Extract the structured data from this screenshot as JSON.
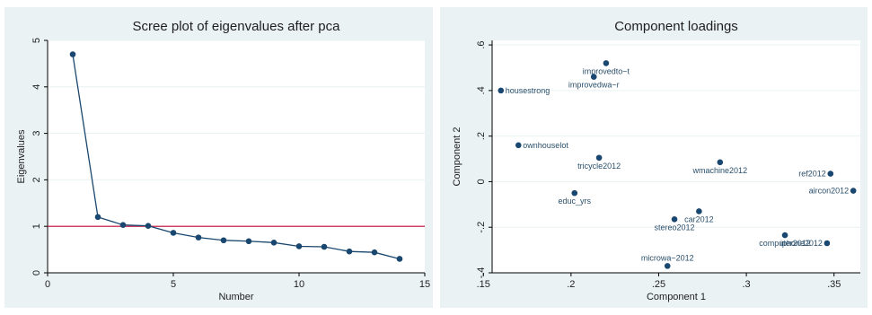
{
  "colors": {
    "panel_bg": "#eaf2f3",
    "plot_bg": "#ffffff",
    "marker": "#1a476f",
    "line": "#1a476f",
    "refline": "#c10534",
    "grid": "#eaf2f3",
    "label": "#2a4f6b"
  },
  "chart_data": [
    {
      "type": "line",
      "title": "Scree plot of eigenvalues after pca",
      "xlabel": "Number",
      "ylabel": "Eigenvalues",
      "xlim": [
        0,
        15
      ],
      "ylim": [
        0,
        5
      ],
      "xticks": [
        0,
        5,
        10,
        15
      ],
      "yticks": [
        0,
        1,
        2,
        3,
        4,
        5
      ],
      "grid": "horizontal",
      "reference_line_y": 1,
      "series": [
        {
          "x": [
            1,
            2,
            3,
            4,
            5,
            6,
            7,
            8,
            9,
            10,
            11,
            12,
            13,
            14
          ],
          "values": [
            4.7,
            1.2,
            1.03,
            1.01,
            0.86,
            0.76,
            0.7,
            0.68,
            0.65,
            0.57,
            0.56,
            0.46,
            0.44,
            0.3
          ]
        }
      ]
    },
    {
      "type": "scatter",
      "title": "Component loadings",
      "xlabel": "Component 1",
      "ylabel": "Component 2",
      "xlim": [
        0.155,
        0.365
      ],
      "ylim": [
        -0.4,
        0.62
      ],
      "xticks": [
        {
          "value": 0.15,
          "label": ".15"
        },
        {
          "value": 0.2,
          "label": ".2"
        },
        {
          "value": 0.25,
          "label": ".25"
        },
        {
          "value": 0.3,
          "label": ".3"
        },
        {
          "value": 0.35,
          "label": ".35"
        }
      ],
      "yticks": [
        {
          "value": -0.4,
          "label": "-.4"
        },
        {
          "value": -0.2,
          "label": "-.2"
        },
        {
          "value": 0,
          "label": "0"
        },
        {
          "value": 0.2,
          "label": ".2"
        },
        {
          "value": 0.4,
          "label": ".4"
        },
        {
          "value": 0.6,
          "label": ".6"
        }
      ],
      "grid": "horizontal",
      "points": [
        {
          "label": "improvedto~t",
          "x": 0.22,
          "y": 0.52,
          "pos": "below"
        },
        {
          "label": "improvedwa~r",
          "x": 0.213,
          "y": 0.46,
          "pos": "below"
        },
        {
          "label": "housestrong",
          "x": 0.16,
          "y": 0.4,
          "pos": "right"
        },
        {
          "label": "ownhouselot",
          "x": 0.17,
          "y": 0.16,
          "pos": "right"
        },
        {
          "label": "tricycle2012",
          "x": 0.216,
          "y": 0.105,
          "pos": "below"
        },
        {
          "label": "wmachine2012",
          "x": 0.285,
          "y": 0.085,
          "pos": "below"
        },
        {
          "label": "ref2012",
          "x": 0.348,
          "y": 0.035,
          "pos": "left"
        },
        {
          "label": "aircon2012",
          "x": 0.361,
          "y": -0.04,
          "pos": "left"
        },
        {
          "label": "educ_yrs",
          "x": 0.202,
          "y": -0.05,
          "pos": "below"
        },
        {
          "label": "car2012",
          "x": 0.273,
          "y": -0.13,
          "pos": "below"
        },
        {
          "label": "stereo2012",
          "x": 0.259,
          "y": -0.165,
          "pos": "below"
        },
        {
          "label": "computer2012",
          "x": 0.322,
          "y": -0.235,
          "pos": "below"
        },
        {
          "label": "iphone2012",
          "x": 0.346,
          "y": -0.27,
          "pos": "left"
        },
        {
          "label": "microwa~2012",
          "x": 0.255,
          "y": -0.37,
          "pos": "above"
        }
      ]
    }
  ]
}
